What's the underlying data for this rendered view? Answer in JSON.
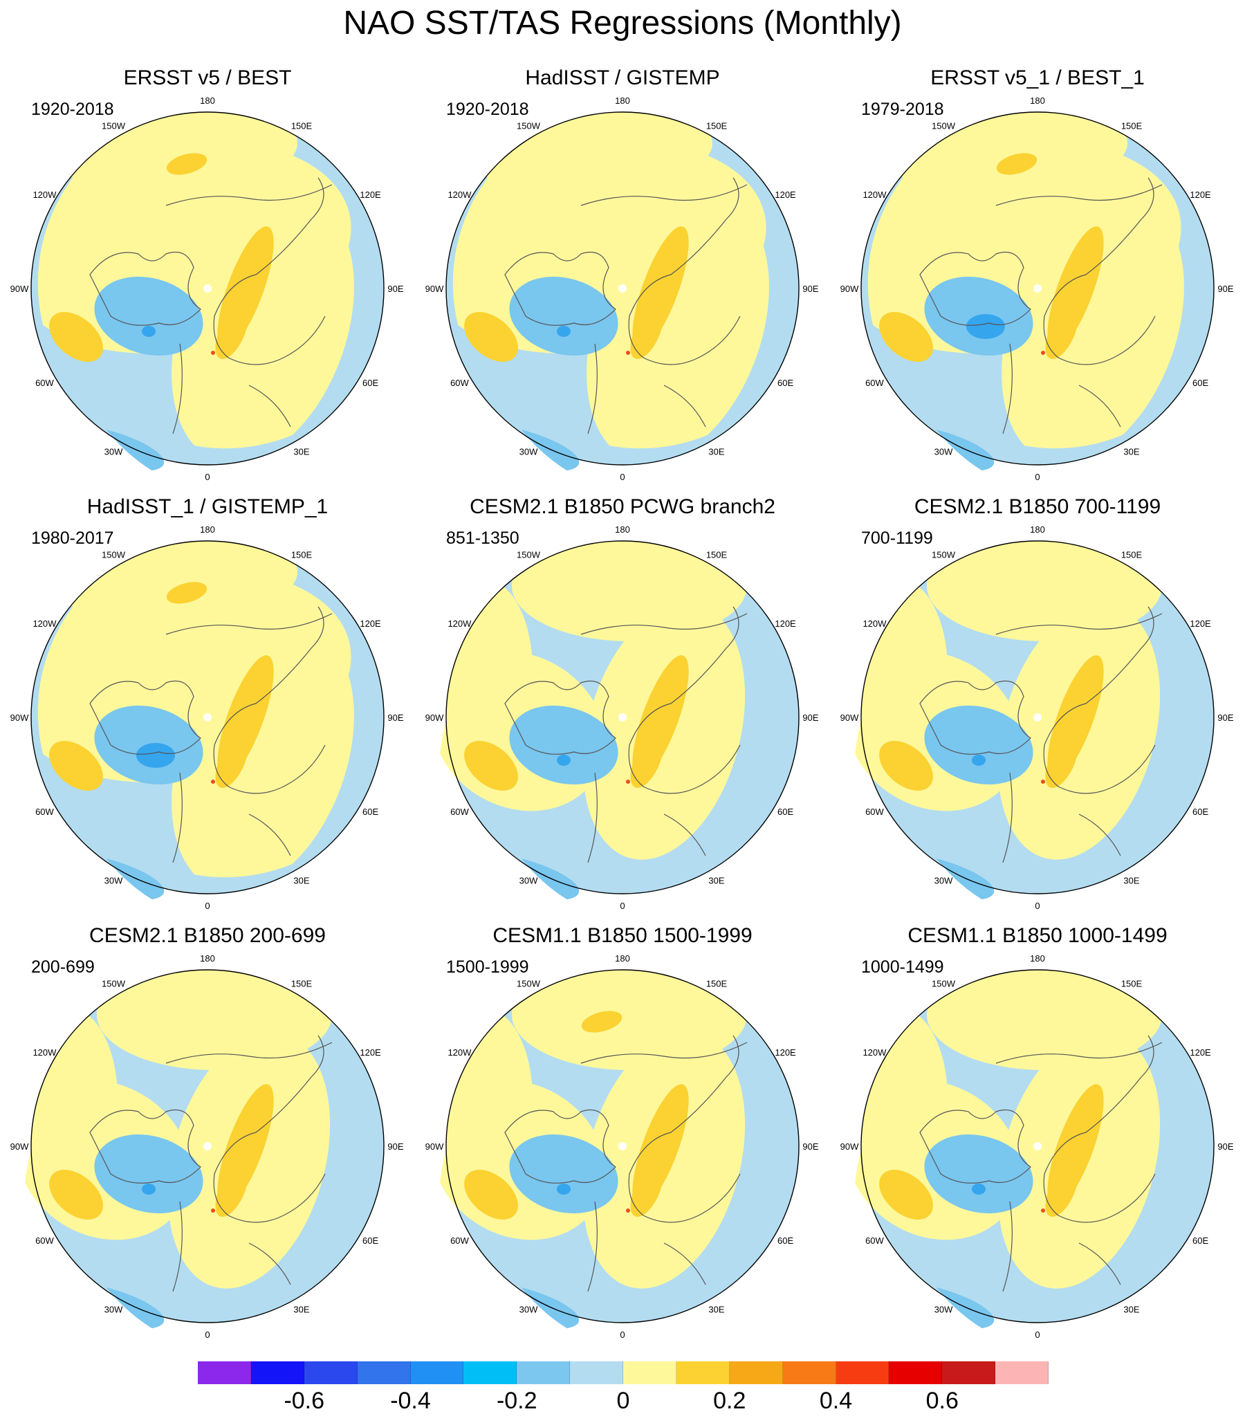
{
  "title": "NAO SST/TAS Regressions (Monthly)",
  "colors": {
    "ocean_neg_weak": "#b3dcf0",
    "neg_mid": "#79c6ef",
    "neg_strong": "#35a5ee",
    "pos_weak": "#fef89b",
    "pos_mid": "#fbd231",
    "pos_strong": "#f6a816",
    "pos_max": "#ee4c1c",
    "land_outline": "#555555",
    "missing": "#ffffff"
  },
  "longitude_labels": [
    "180",
    "150E",
    "120E",
    "90E",
    "60E",
    "30E",
    "0",
    "30W",
    "60W",
    "90W",
    "120W",
    "150W"
  ],
  "panels": [
    {
      "title": "ERSST v5 / BEST",
      "years": "1920-2018",
      "variant": "obs"
    },
    {
      "title": "HadISST / GISTEMP",
      "years": "1920-2018",
      "variant": "obs"
    },
    {
      "title": "ERSST v5_1 / BEST_1",
      "years": "1979-2018",
      "variant": "obs"
    },
    {
      "title": "HadISST_1 / GISTEMP_1",
      "years": "1980-2017",
      "variant": "obs"
    },
    {
      "title": "CESM2.1 B1850 PCWG branch2",
      "years": "851-1350",
      "variant": "model"
    },
    {
      "title": "CESM2.1 B1850 700-1199",
      "years": "700-1199",
      "variant": "model"
    },
    {
      "title": "CESM2.1 B1850 200-699",
      "years": "200-699",
      "variant": "model"
    },
    {
      "title": "CESM1.1 B1850 1500-1999",
      "years": "1500-1999",
      "variant": "model"
    },
    {
      "title": "CESM1.1 B1850 1000-1499",
      "years": "1000-1499",
      "variant": "model"
    }
  ],
  "colorbar": {
    "colors": [
      "#8c28ec",
      "#1414f9",
      "#2b48ee",
      "#3174ec",
      "#2190f5",
      "#02bef6",
      "#7cc7ef",
      "#b3dcf0",
      "#fef89b",
      "#fbd231",
      "#f6a816",
      "#f77a16",
      "#f83c12",
      "#e60000",
      "#c81a1a",
      "#fcb4b4"
    ],
    "tick_labels": [
      "-0.6",
      "-0.4",
      "-0.2",
      "0",
      "0.2",
      "0.4",
      "0.6"
    ],
    "tick_values": [
      -0.6,
      -0.4,
      -0.2,
      0,
      0.2,
      0.4,
      0.6
    ],
    "levels": [
      -0.7,
      -0.6,
      -0.5,
      -0.4,
      -0.3,
      -0.2,
      -0.1,
      0,
      0.1,
      0.2,
      0.3,
      0.4,
      0.5,
      0.6,
      0.7
    ]
  }
}
